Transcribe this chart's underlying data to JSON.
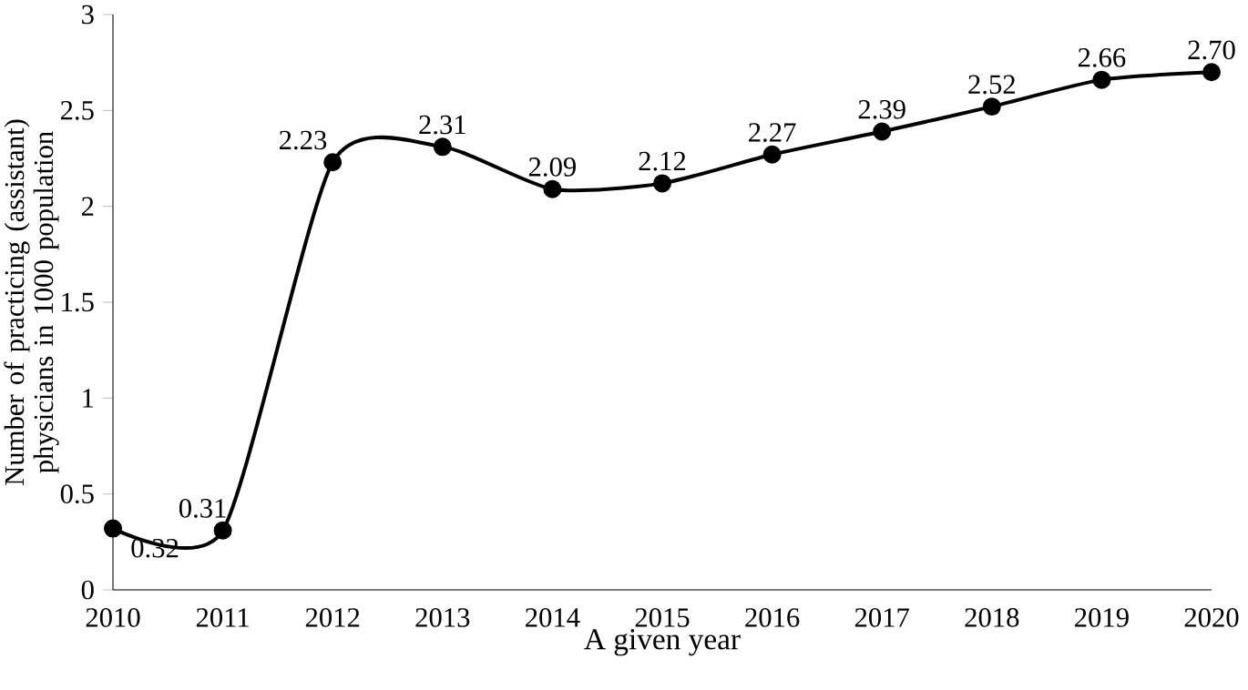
{
  "chart_data": {
    "type": "line",
    "xlabel": "A given year",
    "ylabel": "Number of practicing (assistant) physicians in 1000 population",
    "x": [
      2010,
      2011,
      2012,
      2013,
      2014,
      2015,
      2016,
      2017,
      2018,
      2019,
      2020
    ],
    "series": [
      {
        "color": "#000000",
        "values": [
          0.32,
          0.31,
          2.23,
          2.31,
          2.09,
          2.12,
          2.27,
          2.39,
          2.52,
          2.66,
          2.7
        ],
        "value_labels": [
          "0.32",
          "0.31",
          "2.23",
          "2.31",
          "2.09",
          "2.12",
          "2.27",
          "2.39",
          "2.52",
          "2.66",
          "2.70"
        ]
      }
    ],
    "xlim": [
      2010,
      2020
    ],
    "xticks": [
      2010,
      2011,
      2012,
      2013,
      2014,
      2015,
      2016,
      2017,
      2018,
      2019,
      2020
    ],
    "ylim": [
      0,
      3
    ],
    "yticks": [
      0,
      0.5,
      1,
      1.5,
      2,
      2.5,
      3
    ],
    "marker": "circle",
    "line_style": "solid",
    "grid": false
  }
}
